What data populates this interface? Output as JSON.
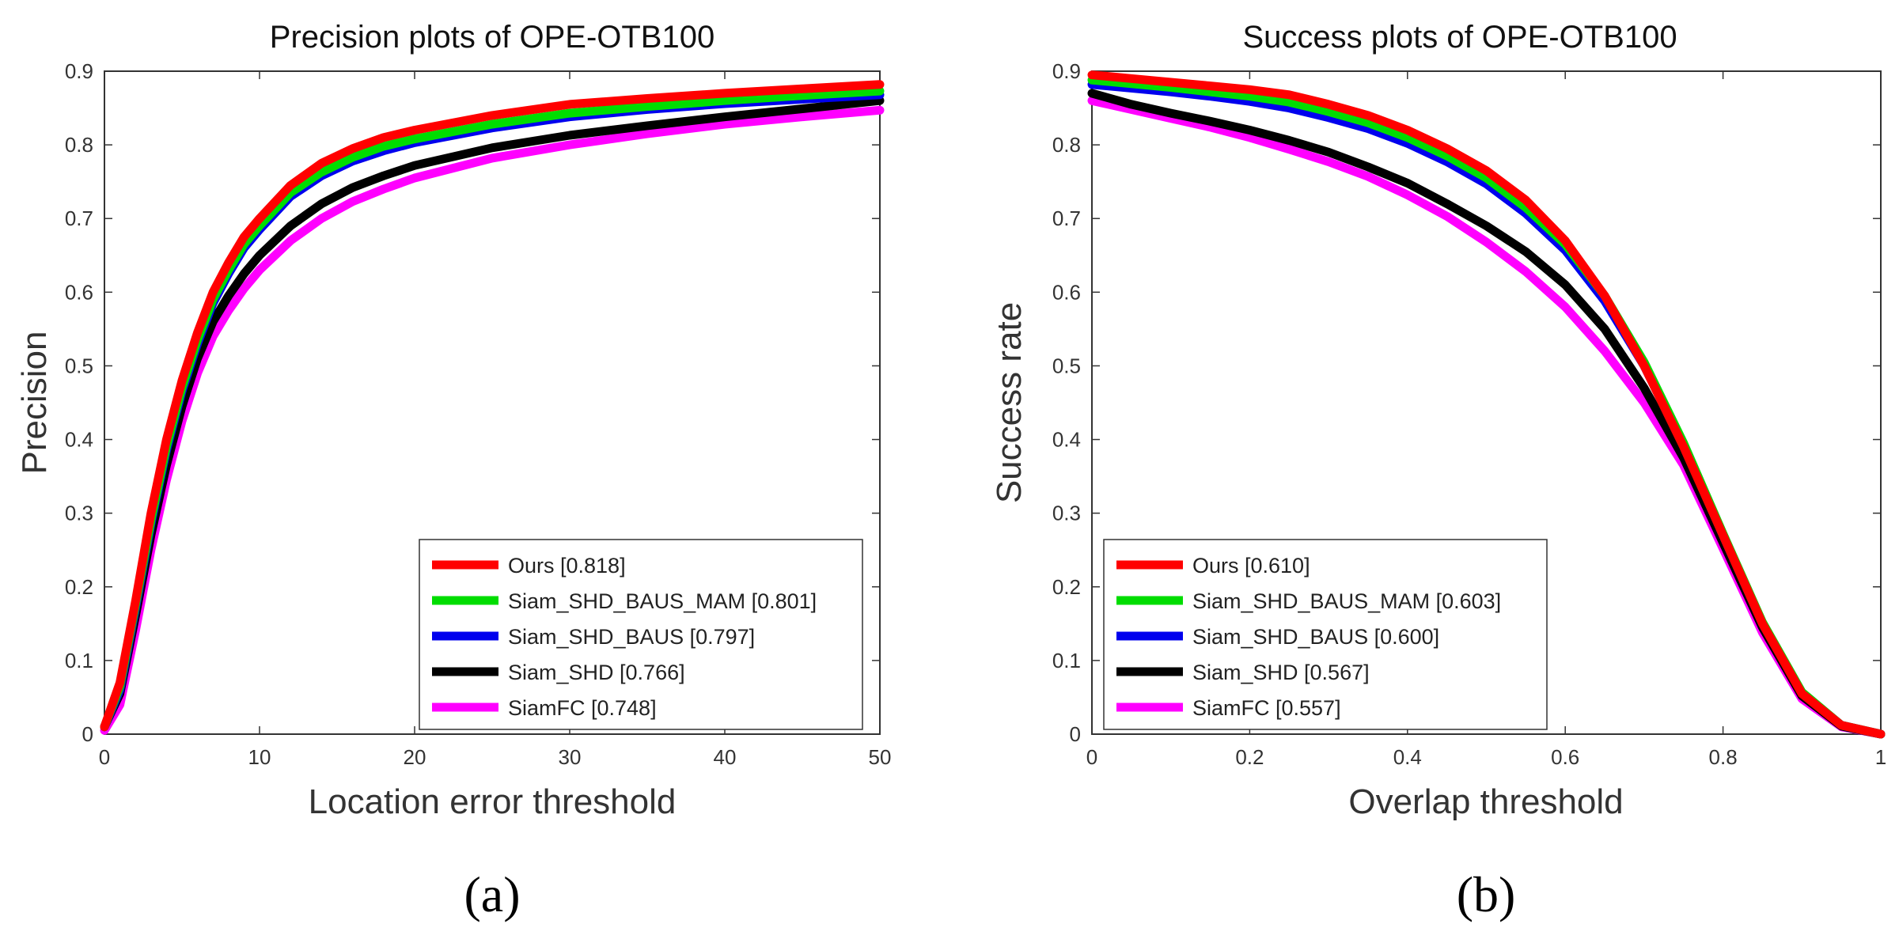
{
  "chart_data": [
    {
      "type": "line",
      "title": "Precision plots of OPE-OTB100",
      "xlabel": "Location error threshold",
      "ylabel": "Precision",
      "xlim": [
        0,
        50
      ],
      "ylim": [
        0,
        0.9
      ],
      "xticks": [
        0,
        10,
        20,
        30,
        40,
        50
      ],
      "xtick_labels": [
        "0",
        "10",
        "20",
        "30",
        "40",
        "50"
      ],
      "yticks": [
        0,
        0.1,
        0.2,
        0.3,
        0.4,
        0.5,
        0.6,
        0.7,
        0.8,
        0.9
      ],
      "ytick_labels": [
        "0",
        "0.1",
        "0.2",
        "0.3",
        "0.4",
        "0.5",
        "0.6",
        "0.7",
        "0.8",
        "0.9"
      ],
      "legend_position": "bottom-right",
      "panel_label": "(a)",
      "x": [
        0,
        1,
        2,
        3,
        4,
        5,
        6,
        7,
        8,
        9,
        10,
        12,
        14,
        16,
        18,
        20,
        25,
        30,
        35,
        40,
        45,
        50
      ],
      "series": [
        {
          "name": "Ours [0.818]",
          "color": "#ff0000",
          "values": [
            0.01,
            0.07,
            0.18,
            0.3,
            0.4,
            0.48,
            0.545,
            0.6,
            0.64,
            0.675,
            0.7,
            0.745,
            0.775,
            0.795,
            0.81,
            0.82,
            0.84,
            0.855,
            0.863,
            0.87,
            0.876,
            0.882
          ]
        },
        {
          "name": "Siam_SHD_BAUS_MAM [0.801]",
          "color": "#00dd00",
          "values": [
            0.01,
            0.065,
            0.175,
            0.29,
            0.39,
            0.47,
            0.535,
            0.59,
            0.63,
            0.665,
            0.69,
            0.735,
            0.763,
            0.783,
            0.798,
            0.808,
            0.828,
            0.843,
            0.852,
            0.86,
            0.867,
            0.873
          ]
        },
        {
          "name": "Siam_SHD_BAUS [0.797]",
          "color": "#0000ee",
          "values": [
            0.01,
            0.06,
            0.17,
            0.285,
            0.385,
            0.465,
            0.53,
            0.585,
            0.625,
            0.66,
            0.685,
            0.73,
            0.758,
            0.778,
            0.792,
            0.803,
            0.823,
            0.838,
            0.848,
            0.856,
            0.862,
            0.868
          ]
        },
        {
          "name": "Siam_SHD [0.766]",
          "color": "#000000",
          "values": [
            0.01,
            0.055,
            0.16,
            0.27,
            0.365,
            0.445,
            0.51,
            0.56,
            0.595,
            0.625,
            0.65,
            0.69,
            0.72,
            0.742,
            0.758,
            0.772,
            0.796,
            0.813,
            0.826,
            0.838,
            0.849,
            0.86
          ]
        },
        {
          "name": "SiamFC [0.748]",
          "color": "#ff00ff",
          "values": [
            0.005,
            0.04,
            0.14,
            0.25,
            0.345,
            0.425,
            0.49,
            0.54,
            0.575,
            0.605,
            0.63,
            0.67,
            0.7,
            0.723,
            0.74,
            0.755,
            0.782,
            0.8,
            0.815,
            0.828,
            0.838,
            0.847
          ]
        }
      ]
    },
    {
      "type": "line",
      "title": "Success plots of OPE-OTB100",
      "xlabel": "Overlap threshold",
      "ylabel": "Success rate",
      "xlim": [
        0,
        1
      ],
      "ylim": [
        0,
        0.9
      ],
      "xticks": [
        0,
        0.2,
        0.4,
        0.6,
        0.8,
        1
      ],
      "xtick_labels": [
        "0",
        "0.2",
        "0.4",
        "0.6",
        "0.8",
        "1"
      ],
      "yticks": [
        0,
        0.1,
        0.2,
        0.3,
        0.4,
        0.5,
        0.6,
        0.7,
        0.8,
        0.9
      ],
      "ytick_labels": [
        "0",
        "0.1",
        "0.2",
        "0.3",
        "0.4",
        "0.5",
        "0.6",
        "0.7",
        "0.8",
        "0.9"
      ],
      "legend_position": "bottom-left",
      "panel_label": "(b)",
      "x": [
        0,
        0.05,
        0.1,
        0.15,
        0.2,
        0.25,
        0.3,
        0.35,
        0.4,
        0.45,
        0.5,
        0.55,
        0.6,
        0.65,
        0.7,
        0.75,
        0.8,
        0.85,
        0.9,
        0.95,
        1.0
      ],
      "series": [
        {
          "name": "Ours [0.610]",
          "color": "#ff0000",
          "values": [
            0.895,
            0.89,
            0.885,
            0.88,
            0.875,
            0.868,
            0.855,
            0.84,
            0.82,
            0.795,
            0.765,
            0.725,
            0.67,
            0.595,
            0.5,
            0.39,
            0.27,
            0.15,
            0.055,
            0.012,
            0.0
          ]
        },
        {
          "name": "Siam_SHD_BAUS_MAM [0.603]",
          "color": "#00dd00",
          "values": [
            0.888,
            0.883,
            0.878,
            0.872,
            0.866,
            0.858,
            0.845,
            0.83,
            0.81,
            0.785,
            0.755,
            0.715,
            0.665,
            0.595,
            0.505,
            0.395,
            0.272,
            0.152,
            0.057,
            0.012,
            0.0
          ]
        },
        {
          "name": "Siam_SHD_BAUS [0.600]",
          "color": "#0000ee",
          "values": [
            0.882,
            0.877,
            0.872,
            0.866,
            0.859,
            0.85,
            0.837,
            0.822,
            0.802,
            0.777,
            0.747,
            0.707,
            0.657,
            0.588,
            0.5,
            0.392,
            0.27,
            0.15,
            0.056,
            0.012,
            0.0
          ]
        },
        {
          "name": "Siam_SHD [0.567]",
          "color": "#000000",
          "values": [
            0.87,
            0.855,
            0.843,
            0.832,
            0.82,
            0.806,
            0.79,
            0.77,
            0.748,
            0.72,
            0.69,
            0.655,
            0.61,
            0.55,
            0.47,
            0.375,
            0.26,
            0.145,
            0.052,
            0.011,
            0.0
          ]
        },
        {
          "name": "SiamFC [0.557]",
          "color": "#ff00ff",
          "values": [
            0.86,
            0.848,
            0.836,
            0.824,
            0.81,
            0.794,
            0.777,
            0.757,
            0.732,
            0.703,
            0.668,
            0.628,
            0.58,
            0.52,
            0.45,
            0.365,
            0.252,
            0.138,
            0.048,
            0.01,
            0.0
          ]
        }
      ]
    }
  ]
}
